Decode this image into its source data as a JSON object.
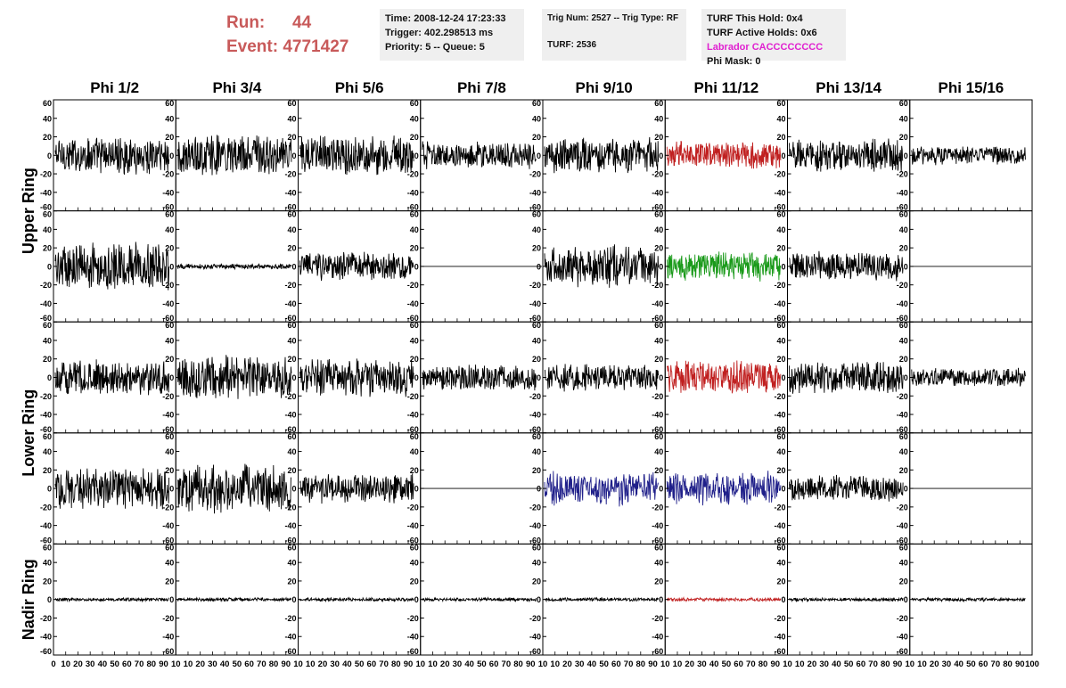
{
  "header": {
    "run_label": "Run:",
    "run_value": "44",
    "event_label": "Event:",
    "event_value": "4771427",
    "time_text": "Time: 2008-12-24 17:23:33",
    "trigger_text": "Trigger: 402.298513 ms",
    "priority_text": "Priority: 5 -- Queue: 5",
    "trig_num_text": "Trig Num: 2527 -- Trig Type: RF",
    "turf_text": "TURF: 2536",
    "turf_hold_text": "TURF This Hold: 0x4",
    "turf_active_text": "TURF Active Holds: 0x6",
    "labrador_text": "Labrador CACCCCCCCC",
    "phi_mask_text": "Phi Mask: 0"
  },
  "chart_data": {
    "type": "line",
    "columns": [
      "Phi 1/2",
      "Phi 3/4",
      "Phi 5/6",
      "Phi 7/8",
      "Phi 9/10",
      "Phi 11/12",
      "Phi 13/14",
      "Phi 15/16"
    ],
    "ring_labels": [
      {
        "text": "Upper Ring",
        "rows": [
          0,
          1
        ]
      },
      {
        "text": "Lower Ring",
        "rows": [
          2,
          3
        ]
      },
      {
        "text": "Nadir Ring",
        "rows": [
          4
        ]
      }
    ],
    "xlim": [
      0,
      100
    ],
    "ylim": [
      -60,
      60
    ],
    "y_ticks": [
      60,
      40,
      20,
      0,
      -20,
      -40,
      -60
    ],
    "x_tick_labels_first": [
      "0",
      "10",
      "20",
      "30",
      "40",
      "50",
      "60",
      "70",
      "80",
      "90",
      "10"
    ],
    "x_tick_labels": [
      "10",
      "20",
      "30",
      "40",
      "50",
      "60",
      "70",
      "80",
      "90",
      "10"
    ],
    "x_tick_labels_last": [
      "10",
      "20",
      "30",
      "40",
      "50",
      "60",
      "70",
      "80",
      "90",
      "100"
    ],
    "colors": {
      "normal": "#000000",
      "red": "#c02020",
      "green": "#1a9a1a",
      "blue": "#20208a"
    },
    "panels": [
      [
        {
          "amp": 22,
          "color": "normal"
        },
        {
          "amp": 24,
          "color": "normal"
        },
        {
          "amp": 24,
          "color": "normal"
        },
        {
          "amp": 16,
          "color": "normal"
        },
        {
          "amp": 20,
          "color": "normal"
        },
        {
          "amp": 16,
          "color": "red"
        },
        {
          "amp": 19,
          "color": "normal"
        },
        {
          "amp": 11,
          "color": "normal"
        }
      ],
      [
        {
          "amp": 28,
          "color": "normal"
        },
        {
          "amp": 3,
          "color": "normal"
        },
        {
          "amp": 17,
          "color": "normal"
        },
        {
          "amp": 0,
          "color": "normal"
        },
        {
          "amp": 24,
          "color": "normal"
        },
        {
          "amp": 17,
          "color": "green"
        },
        {
          "amp": 17,
          "color": "normal"
        },
        {
          "amp": 0,
          "color": "normal"
        }
      ],
      [
        {
          "amp": 20,
          "color": "normal"
        },
        {
          "amp": 26,
          "color": "normal"
        },
        {
          "amp": 22,
          "color": "normal"
        },
        {
          "amp": 15,
          "color": "normal"
        },
        {
          "amp": 16,
          "color": "normal"
        },
        {
          "amp": 20,
          "color": "red"
        },
        {
          "amp": 19,
          "color": "normal"
        },
        {
          "amp": 11,
          "color": "normal"
        }
      ],
      [
        {
          "amp": 24,
          "color": "normal"
        },
        {
          "amp": 29,
          "color": "normal"
        },
        {
          "amp": 17,
          "color": "normal"
        },
        {
          "amp": 0,
          "color": "normal"
        },
        {
          "amp": 22,
          "color": "blue"
        },
        {
          "amp": 21,
          "color": "blue"
        },
        {
          "amp": 15,
          "color": "normal"
        },
        {
          "amp": 0,
          "color": "normal"
        }
      ],
      [
        {
          "amp": 2,
          "color": "normal"
        },
        {
          "amp": 2,
          "color": "normal"
        },
        {
          "amp": 2,
          "color": "normal"
        },
        {
          "amp": 2,
          "color": "normal"
        },
        {
          "amp": 2,
          "color": "normal"
        },
        {
          "amp": 2,
          "color": "red"
        },
        {
          "amp": 2,
          "color": "normal"
        },
        {
          "amp": 2,
          "color": "normal"
        }
      ]
    ]
  }
}
